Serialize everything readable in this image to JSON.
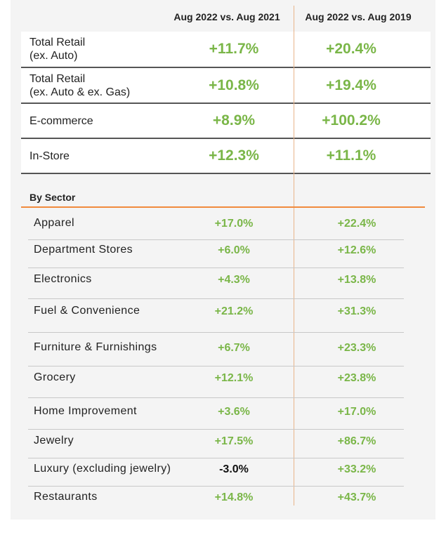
{
  "header": {
    "columns": [
      "Aug 2022 vs. Aug 2021",
      "Aug 2022 vs. Aug 2019"
    ]
  },
  "summary_rows": [
    {
      "label": [
        "Total Retail",
        "(ex. Auto)"
      ],
      "values": [
        "+11.7%",
        "+20.4%"
      ]
    },
    {
      "label": [
        "Total Retail",
        "(ex. Auto & ex. Gas)"
      ],
      "values": [
        "+10.8%",
        "+19.4%"
      ]
    },
    {
      "label": [
        "E-commerce"
      ],
      "values": [
        "+8.9%",
        "+100.2%"
      ]
    },
    {
      "label": [
        "In-Store"
      ],
      "values": [
        "+12.3%",
        "+11.1%"
      ]
    }
  ],
  "section": {
    "title": "By Sector",
    "rows": [
      {
        "label": "Apparel",
        "values": [
          "+17.0%",
          "+22.4%"
        ]
      },
      {
        "label": "Department Stores",
        "values": [
          "+6.0%",
          "+12.6%"
        ]
      },
      {
        "label": "Electronics",
        "values": [
          "+4.3%",
          "+13.8%"
        ]
      },
      {
        "label": "Fuel & Convenience",
        "values": [
          "+21.2%",
          "+31.3%"
        ]
      },
      {
        "label": "Furniture & Furnishings",
        "values": [
          "+6.7%",
          "+23.3%"
        ]
      },
      {
        "label": "Grocery",
        "values": [
          "+12.1%",
          "+23.8%"
        ]
      },
      {
        "label": "Home Improvement",
        "values": [
          "+3.6%",
          "+17.0%"
        ]
      },
      {
        "label": "Jewelry",
        "values": [
          "+17.5%",
          "+86.7%"
        ]
      },
      {
        "label": "Luxury (excluding jewelry)",
        "values": [
          "-3.0%",
          "+33.2%"
        ]
      },
      {
        "label": "Restaurants",
        "values": [
          "+14.8%",
          "+43.7%"
        ]
      }
    ]
  }
}
